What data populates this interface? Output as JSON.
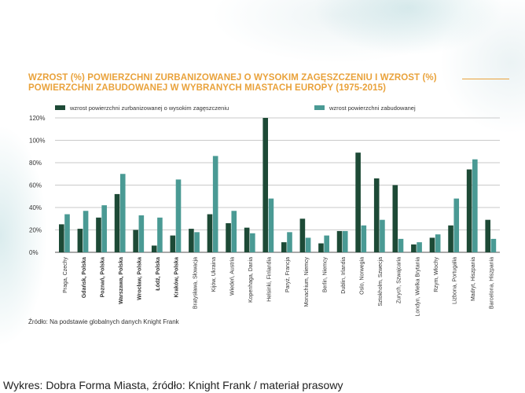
{
  "chart_data": {
    "type": "bar",
    "title": "WZROST (%) POWIERZCHNI ZURBANIZOWANEJ O WYSOKIM ZAGĘSZCZENIU I WZROST (%) POWIERZCHNI ZABUDOWANEJ W WYBRANYCH MIASTACH EUROPY (1975-2015)",
    "xlabel": "",
    "ylabel": "",
    "ylim": [
      0,
      120
    ],
    "yticks": [
      "0%",
      "20%",
      "40%",
      "60%",
      "80%",
      "100%",
      "120%"
    ],
    "grid": true,
    "legend_placement": "top",
    "categories": [
      "Praga, Czechy",
      "Gdańsk, Polska",
      "Poznań, Polska",
      "Warszawa, Polska",
      "Wrocław, Polska",
      "Łódź, Polska",
      "Kraków, Polska",
      "Bratysława, Słowacja",
      "Kijów, Ukraina",
      "Wiedeń, Austria",
      "Kopenhaga, Dania",
      "Helsinki, Finlandia",
      "Paryż, Francja",
      "Monachium, Niemcy",
      "Berlin, Niemcy",
      "Dublin, Irlandia",
      "Oslo, Norwegia",
      "Sztokholm, Szwecja",
      "Zurych, Szwajcaria",
      "Londyn, Wielka Brytania",
      "Rzym, Włochy",
      "Lizbona, Portugalia",
      "Madryt, Hiszpania",
      "Barcelona, Hiszpania"
    ],
    "bold_categories": [
      1,
      2,
      3,
      4,
      5,
      6
    ],
    "series": [
      {
        "name": "wzrost powierzchni zurbanizowanej o wysokim zagęszczeniu",
        "color": "#1d4a36",
        "values": [
          25,
          21,
          31,
          52,
          20,
          6,
          15,
          21,
          34,
          26,
          22,
          120,
          9,
          30,
          8,
          19,
          89,
          66,
          60,
          7,
          13,
          24,
          74,
          29
        ]
      },
      {
        "name": "wzrost powierzchni zabudowanej",
        "color": "#4a9a94",
        "values": [
          34,
          37,
          42,
          70,
          33,
          31,
          65,
          18,
          86,
          37,
          17,
          48,
          18,
          13,
          15,
          19,
          24,
          29,
          12,
          9,
          16,
          48,
          83,
          12
        ]
      }
    ]
  },
  "source": "Źródło: Na podstawie globalnych danych Knight Frank",
  "caption": "Wykres: Dobra Forma Miasta, źródło: Knight Frank / materiał prasowy",
  "colors": {
    "title": "#e9a23b",
    "grid": "#b9b9b9"
  }
}
